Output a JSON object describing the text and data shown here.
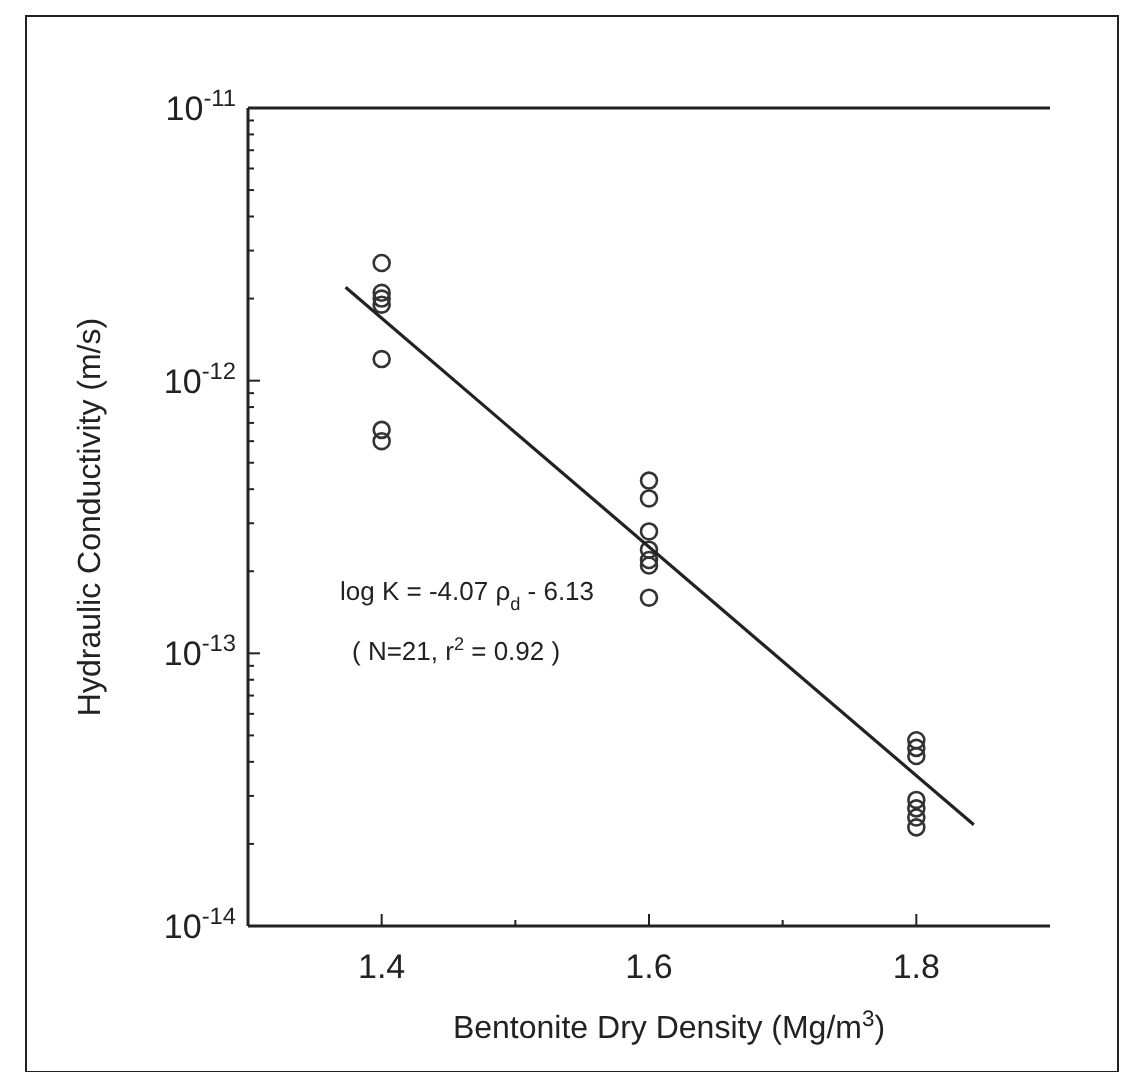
{
  "chart_data": {
    "type": "scatter",
    "xlabel": "Bentonite Dry Density  (Mg/m$^{3}$)",
    "ylabel": "Hydraulic Conductivity  (m/s)",
    "annotations": [
      "log K = -4.07 ρ$_{d}$ - 6.13",
      "( N=21, r$^{2}$ = 0.92 )"
    ],
    "log": "y",
    "xlim": [
      1.3,
      1.9
    ],
    "ylim": [
      1e-14,
      1e-11
    ],
    "xticks": [
      {
        "value": 1.3,
        "label": null
      },
      1.4,
      {
        "value": 1.5,
        "label": null
      },
      1.6,
      {
        "value": 1.7,
        "label": null
      },
      1.8
    ],
    "yticks": [
      {
        "value": 1e-14,
        "label": "10$^{-14}$"
      },
      {
        "value": 2e-14,
        "label": null
      },
      {
        "value": 3e-14,
        "label": null
      },
      {
        "value": 4e-14,
        "label": null
      },
      {
        "value": 5e-14,
        "label": null
      },
      {
        "value": 6e-14,
        "label": null
      },
      {
        "value": 7e-14,
        "label": null
      },
      {
        "value": 8e-14,
        "label": null
      },
      {
        "value": 9e-14,
        "label": null
      },
      {
        "value": 1e-13,
        "label": "10$^{-13}$"
      },
      {
        "value": 2e-13,
        "label": null
      },
      {
        "value": 3e-13,
        "label": null
      },
      {
        "value": 4e-13,
        "label": null
      },
      {
        "value": 5e-13,
        "label": null
      },
      {
        "value": 6e-13,
        "label": null
      },
      {
        "value": 7e-13,
        "label": null
      },
      {
        "value": 8e-13,
        "label": null
      },
      {
        "value": 9e-13,
        "label": null
      },
      {
        "value": 1e-12,
        "label": "10$^{-12}$"
      },
      {
        "value": 2e-12,
        "label": null
      },
      {
        "value": 3e-12,
        "label": null
      },
      {
        "value": 4e-12,
        "label": null
      },
      {
        "value": 5e-12,
        "label": null
      },
      {
        "value": 6e-12,
        "label": null
      },
      {
        "value": 7e-12,
        "label": null
      },
      {
        "value": 8e-12,
        "label": null
      },
      {
        "value": 9e-12,
        "label": null
      },
      {
        "value": 1e-11,
        "label": "10$^{-11}$"
      }
    ],
    "grid": false,
    "series": [
      {
        "color": "#333333",
        "marker": "circle",
        "x": [
          1.4,
          1.4,
          1.4,
          1.4,
          1.4,
          1.4,
          1.4,
          1.6,
          1.6,
          1.6,
          1.6,
          1.6,
          1.6,
          1.6,
          1.8,
          1.8,
          1.8,
          1.8,
          1.8,
          1.8,
          1.8
        ],
        "values": [
          2.7e-12,
          2.1e-12,
          2e-12,
          1.9e-12,
          1.2e-12,
          6.6e-13,
          6e-13,
          4.3e-13,
          3.7e-13,
          2.8e-13,
          2.4e-13,
          2.2e-13,
          2.1e-13,
          1.6e-13,
          4.8e-14,
          4.5e-14,
          4.2e-14,
          2.9e-14,
          2.7e-14,
          2.5e-14,
          2.3e-14
        ]
      },
      {
        "type": "line",
        "color": "#222222",
        "line_style": "solid",
        "x": [
          1.373,
          1.843
        ],
        "values": [
          2.2e-12,
          2.35e-14
        ]
      }
    ]
  }
}
